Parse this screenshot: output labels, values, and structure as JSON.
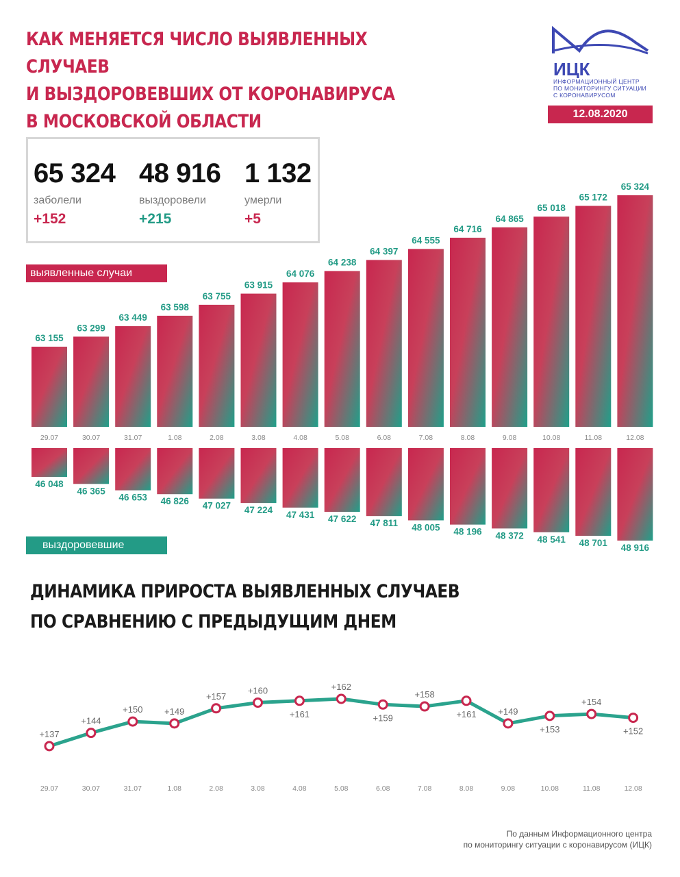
{
  "header": {
    "title_lines": [
      "КАК МЕНЯЕТСЯ ЧИСЛО ВЫЯВЛЕННЫХ СЛУЧАЕВ",
      "И ВЫЗДОРОВЕВШИХ ОТ КОРОНАВИРУСА",
      "В МОСКОВСКОЙ ОБЛАСТИ"
    ],
    "logo_text": "ИЦК",
    "logo_sub_lines": [
      "ИНФОРМАЦИОННЫЙ ЦЕНТР",
      "ПО МОНИТОРИНГУ СИТУАЦИИ",
      "С КОРОНАВИРУСОМ"
    ],
    "date": "12.08.2020"
  },
  "stats": [
    {
      "value": "65 324",
      "label": "заболели",
      "increment": "+152"
    },
    {
      "value": "48 916",
      "label": "выздоровели",
      "increment": "+215"
    },
    {
      "value": "1 132",
      "label": "умерли",
      "increment": "+5"
    }
  ],
  "labels": {
    "cases": "выявленные случаи",
    "recovered": "выздоровевшие"
  },
  "section2_title_lines": [
    "ДИНАМИКА ПРИРОСТА ВЫЯВЛЕННЫХ СЛУЧАЕВ",
    "ПО СРАВНЕНИЮ С ПРЕДЫДУЩИМ ДНЕМ"
  ],
  "source_lines": [
    "По данным Информационного центра",
    "по мониторингу ситуации с коронавирусом (ИЦК)"
  ],
  "colors": {
    "accent_red": "#c8274f",
    "accent_green": "#239b86",
    "line_green": "#2ba38d"
  },
  "chart_data": [
    {
      "type": "bar",
      "categories": [
        "29.07",
        "30.07",
        "31.07",
        "1.08",
        "2.08",
        "3.08",
        "4.08",
        "5.08",
        "6.08",
        "7.08",
        "8.08",
        "9.08",
        "10.08",
        "11.08",
        "12.08"
      ],
      "series": [
        {
          "name": "выявленные случаи",
          "values": [
            63155,
            63299,
            63449,
            63598,
            63755,
            63915,
            64076,
            64238,
            64397,
            64555,
            64716,
            64865,
            65018,
            65172,
            65324
          ],
          "labels": [
            "63 155",
            "63 299",
            "63 449",
            "63 598",
            "63 755",
            "63 915",
            "64 076",
            "64 238",
            "64 397",
            "64 555",
            "64 716",
            "64 865",
            "65 018",
            "65 172",
            "65 324"
          ]
        },
        {
          "name": "выздоровевшие",
          "values": [
            46048,
            46365,
            46653,
            46826,
            47027,
            47224,
            47431,
            47622,
            47811,
            48005,
            48196,
            48372,
            48541,
            48701,
            48916
          ],
          "labels": [
            "46 048",
            "46 365",
            "46 653",
            "46 826",
            "47 027",
            "47 224",
            "47 431",
            "47 622",
            "47 811",
            "48 005",
            "48 196",
            "48 372",
            "48 541",
            "48 701",
            "48 916"
          ]
        }
      ]
    },
    {
      "type": "line",
      "categories": [
        "29.07",
        "30.07",
        "31.07",
        "1.08",
        "2.08",
        "3.08",
        "4.08",
        "5.08",
        "6.08",
        "7.08",
        "8.08",
        "9.08",
        "10.08",
        "11.08",
        "12.08"
      ],
      "values": [
        137,
        144,
        150,
        149,
        157,
        160,
        161,
        162,
        159,
        158,
        161,
        149,
        153,
        154,
        152
      ],
      "labels": [
        "+137",
        "+144",
        "+150",
        "+149",
        "+157",
        "+160",
        "+161",
        "+162",
        "+159",
        "+158",
        "+161",
        "+149",
        "+153",
        "+154",
        "+152"
      ],
      "label_positions": [
        "above",
        "above",
        "above",
        "above",
        "above",
        "above",
        "below",
        "above",
        "below",
        "above",
        "below",
        "above",
        "below",
        "above",
        "below"
      ]
    }
  ]
}
